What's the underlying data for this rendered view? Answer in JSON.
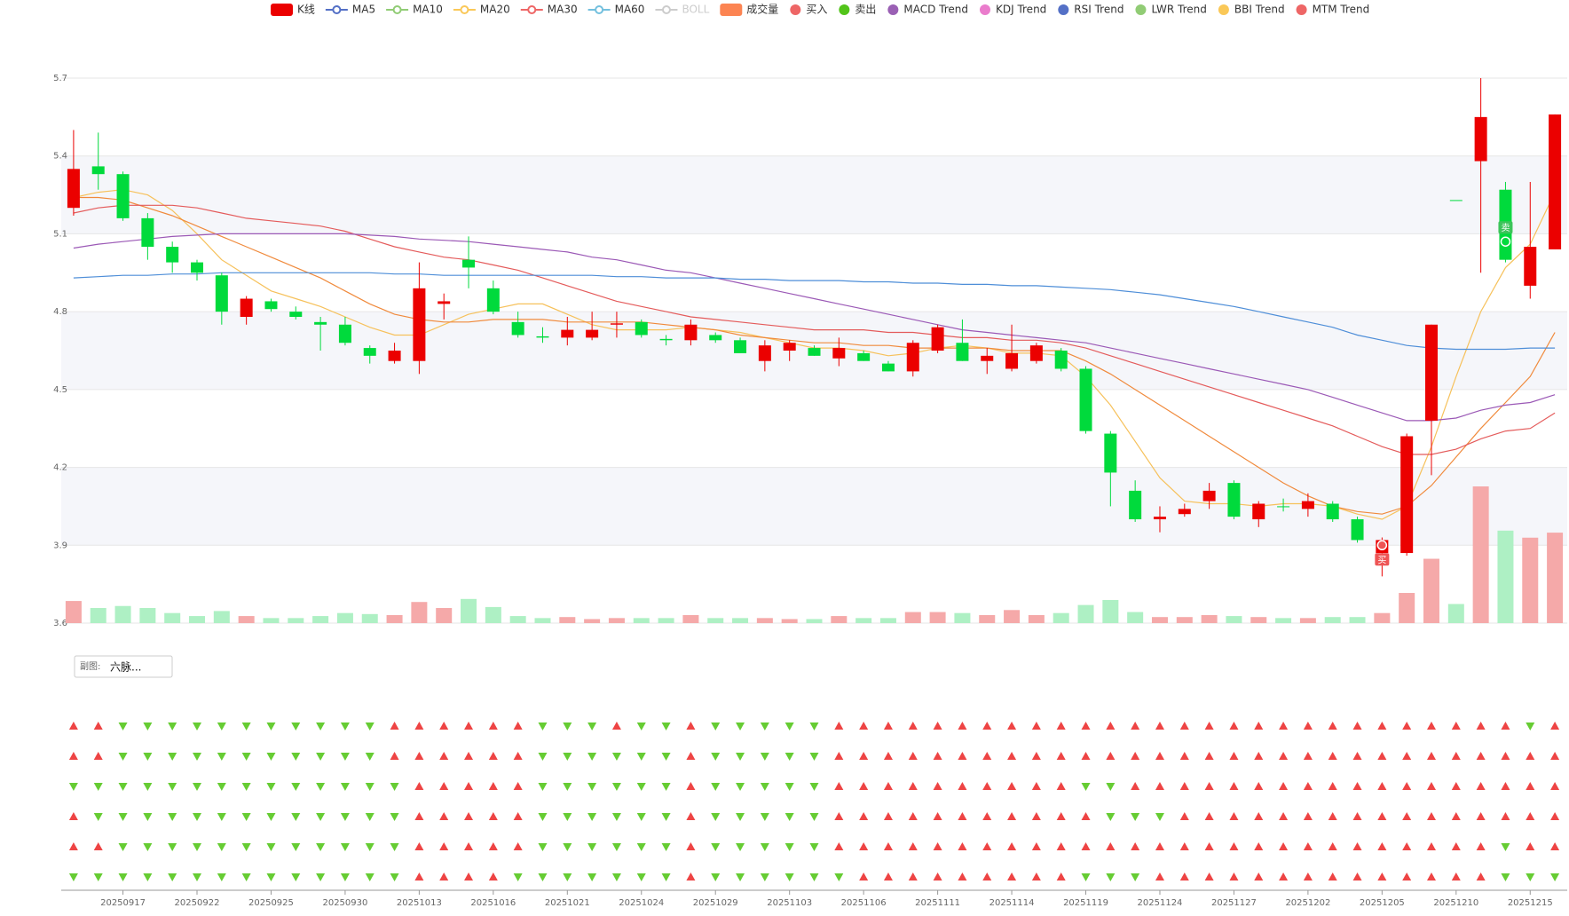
{
  "chart_data": {
    "type": "candlestick",
    "legend": [
      {
        "name": "K线",
        "color": "#eb0000",
        "icon": "rect"
      },
      {
        "name": "MA5",
        "color": "#5470c6",
        "icon": "line"
      },
      {
        "name": "MA10",
        "color": "#91cc75",
        "icon": "line"
      },
      {
        "name": "MA20",
        "color": "#fac858",
        "icon": "line"
      },
      {
        "name": "MA30",
        "color": "#ee6666",
        "icon": "line"
      },
      {
        "name": "MA60",
        "color": "#73c0de",
        "icon": "line"
      },
      {
        "name": "BOLL",
        "color": "#cccccc",
        "icon": "line",
        "inactive": true
      },
      {
        "name": "成交量",
        "color": "#fc8452",
        "icon": "rect"
      },
      {
        "name": "买入",
        "color": "#ee6666",
        "icon": "circle"
      },
      {
        "name": "卖出",
        "color": "#52c41a",
        "icon": "circle"
      },
      {
        "name": "MACD Trend",
        "color": "#9a60b4",
        "icon": "circle"
      },
      {
        "name": "KDJ Trend",
        "color": "#ea7ccc",
        "icon": "circle"
      },
      {
        "name": "RSI Trend",
        "color": "#5470c6",
        "icon": "circle"
      },
      {
        "name": "LWR Trend",
        "color": "#91cc75",
        "icon": "circle"
      },
      {
        "name": "BBI Trend",
        "color": "#fac858",
        "icon": "circle"
      },
      {
        "name": "MTM Trend",
        "color": "#ee6666",
        "icon": "circle"
      }
    ],
    "categories": [
      null,
      null,
      "20250917",
      null,
      null,
      "20250922",
      null,
      null,
      "20250925",
      null,
      null,
      "20250930",
      null,
      null,
      "20251013",
      null,
      null,
      "20251016",
      null,
      null,
      "20251021",
      null,
      null,
      "20251024",
      null,
      null,
      "20251029",
      null,
      null,
      "20251103",
      null,
      null,
      "20251106",
      null,
      null,
      "20251111",
      null,
      null,
      "20251114",
      null,
      null,
      "20251119",
      null,
      null,
      "20251124",
      null,
      null,
      "20251127",
      null,
      null,
      "20251202",
      null,
      null,
      "20251205",
      null,
      null,
      "20251210",
      null,
      null,
      "20251215",
      null
    ],
    "open": [
      5.2,
      5.36,
      5.33,
      5.16,
      5.05,
      4.99,
      4.94,
      4.78,
      4.84,
      4.8,
      4.76,
      4.75,
      4.66,
      4.61,
      4.61,
      4.83,
      5.0,
      4.89,
      4.76,
      4.705,
      4.7,
      4.7,
      4.75,
      4.76,
      4.695,
      4.69,
      4.71,
      4.69,
      4.61,
      4.65,
      4.66,
      4.62,
      4.64,
      4.6,
      4.57,
      4.65,
      4.68,
      4.61,
      4.58,
      4.61,
      4.65,
      4.58,
      4.33,
      4.11,
      4.0,
      4.02,
      4.07,
      4.14,
      4.0,
      4.05,
      4.04,
      4.06,
      4.0,
      3.87,
      3.87,
      4.38,
      5.23,
      5.38,
      5.27,
      4.9,
      5.04
    ],
    "close": [
      5.35,
      5.33,
      5.16,
      5.05,
      4.99,
      4.95,
      4.8,
      4.85,
      4.81,
      4.78,
      4.75,
      4.68,
      4.63,
      4.65,
      4.89,
      4.84,
      4.97,
      4.8,
      4.71,
      4.7,
      4.73,
      4.73,
      4.755,
      4.71,
      4.69,
      4.75,
      4.69,
      4.64,
      4.67,
      4.68,
      4.63,
      4.66,
      4.61,
      4.57,
      4.68,
      4.74,
      4.61,
      4.63,
      4.64,
      4.67,
      4.58,
      4.34,
      4.18,
      4.0,
      4.01,
      4.04,
      4.11,
      4.01,
      4.06,
      4.05,
      4.07,
      4.0,
      3.92,
      3.92,
      4.32,
      4.75,
      5.23,
      5.55,
      5.0,
      5.05,
      5.56
    ],
    "high": [
      5.5,
      5.49,
      5.34,
      5.18,
      5.07,
      5.0,
      4.95,
      4.86,
      4.85,
      4.82,
      4.78,
      4.78,
      4.67,
      4.68,
      4.99,
      4.87,
      5.09,
      4.92,
      4.8,
      4.74,
      4.78,
      4.8,
      4.8,
      4.77,
      4.71,
      4.77,
      4.72,
      4.7,
      4.69,
      4.69,
      4.67,
      4.7,
      4.65,
      4.61,
      4.69,
      4.75,
      4.77,
      4.66,
      4.75,
      4.68,
      4.66,
      4.59,
      4.34,
      4.15,
      4.05,
      4.06,
      4.14,
      4.15,
      4.07,
      4.08,
      4.1,
      4.07,
      4.01,
      3.93,
      4.33,
      4.75,
      5.23,
      5.7,
      5.3,
      5.3,
      5.56
    ],
    "low": [
      5.17,
      5.27,
      5.15,
      5.0,
      4.95,
      4.92,
      4.75,
      4.75,
      4.8,
      4.77,
      4.65,
      4.67,
      4.6,
      4.6,
      4.56,
      4.77,
      4.89,
      4.79,
      4.7,
      4.68,
      4.67,
      4.69,
      4.7,
      4.7,
      4.67,
      4.67,
      4.68,
      4.64,
      4.57,
      4.61,
      4.63,
      4.59,
      4.61,
      4.57,
      4.55,
      4.64,
      4.61,
      4.56,
      4.57,
      4.6,
      4.57,
      4.33,
      4.05,
      3.99,
      3.95,
      4.01,
      4.04,
      4.0,
      3.97,
      4.03,
      4.01,
      3.99,
      3.91,
      3.78,
      3.86,
      4.17,
      5.23,
      4.95,
      4.99,
      4.85,
      5.04
    ],
    "up_color": "#eb0000",
    "down_color": "#00da3c",
    "ylim": [
      3.6,
      5.7
    ],
    "yticks": [
      3.6,
      3.9,
      4.2,
      4.5,
      4.8,
      5.1,
      5.4,
      5.7
    ],
    "grid": true,
    "lines": [
      {
        "color": "#f6c15b",
        "values": [
          5.24,
          5.26,
          5.27,
          5.25,
          5.19,
          5.1,
          5.0,
          4.94,
          4.88,
          4.85,
          4.82,
          4.78,
          4.74,
          4.71,
          4.71,
          4.75,
          4.79,
          4.81,
          4.83,
          4.83,
          4.79,
          4.75,
          4.73,
          4.73,
          4.73,
          4.74,
          4.73,
          4.72,
          4.7,
          4.68,
          4.66,
          4.66,
          4.65,
          4.63,
          4.64,
          4.66,
          4.67,
          4.66,
          4.64,
          4.64,
          4.63,
          4.55,
          4.44,
          4.3,
          4.16,
          4.07,
          4.06,
          4.06,
          4.05,
          4.06,
          4.06,
          4.05,
          4.02,
          4.0,
          4.05,
          4.28,
          4.55,
          4.8,
          4.97,
          5.06,
          5.26
        ]
      },
      {
        "color": "#f08a3c",
        "values": [
          5.24,
          5.24,
          5.23,
          5.2,
          5.17,
          5.13,
          5.09,
          5.05,
          5.01,
          4.97,
          4.93,
          4.88,
          4.83,
          4.79,
          4.77,
          4.76,
          4.76,
          4.77,
          4.77,
          4.77,
          4.76,
          4.76,
          4.76,
          4.76,
          4.75,
          4.74,
          4.73,
          4.71,
          4.7,
          4.69,
          4.68,
          4.68,
          4.67,
          4.67,
          4.66,
          4.66,
          4.66,
          4.66,
          4.65,
          4.65,
          4.65,
          4.61,
          4.56,
          4.5,
          4.44,
          4.38,
          4.32,
          4.26,
          4.2,
          4.14,
          4.09,
          4.05,
          4.03,
          4.02,
          4.05,
          4.13,
          4.24,
          4.35,
          4.45,
          4.55,
          4.72
        ]
      },
      {
        "color": "#e45b5b",
        "values": [
          5.18,
          5.2,
          5.21,
          5.21,
          5.21,
          5.2,
          5.18,
          5.16,
          5.15,
          5.14,
          5.13,
          5.11,
          5.08,
          5.05,
          5.03,
          5.01,
          5.0,
          4.98,
          4.96,
          4.93,
          4.9,
          4.87,
          4.84,
          4.82,
          4.8,
          4.78,
          4.77,
          4.76,
          4.75,
          4.74,
          4.73,
          4.73,
          4.73,
          4.72,
          4.72,
          4.71,
          4.7,
          4.7,
          4.69,
          4.69,
          4.68,
          4.66,
          4.63,
          4.6,
          4.57,
          4.54,
          4.51,
          4.48,
          4.45,
          4.42,
          4.39,
          4.36,
          4.32,
          4.28,
          4.25,
          4.25,
          4.27,
          4.31,
          4.34,
          4.35,
          4.41
        ]
      },
      {
        "color": "#9b59b6",
        "values": [
          5.045,
          5.06,
          5.07,
          5.08,
          5.09,
          5.095,
          5.1,
          5.1,
          5.1,
          5.1,
          5.1,
          5.1,
          5.095,
          5.09,
          5.08,
          5.075,
          5.07,
          5.06,
          5.05,
          5.04,
          5.03,
          5.01,
          5.0,
          4.98,
          4.96,
          4.95,
          4.93,
          4.91,
          4.89,
          4.87,
          4.85,
          4.83,
          4.81,
          4.79,
          4.77,
          4.75,
          4.73,
          4.72,
          4.71,
          4.7,
          4.69,
          4.68,
          4.66,
          4.64,
          4.62,
          4.6,
          4.58,
          4.56,
          4.54,
          4.52,
          4.5,
          4.47,
          4.44,
          4.41,
          4.38,
          4.38,
          4.39,
          4.42,
          4.44,
          4.45,
          4.48
        ]
      },
      {
        "color": "#4e8ed8",
        "values": [
          4.93,
          4.935,
          4.94,
          4.94,
          4.945,
          4.945,
          4.95,
          4.95,
          4.95,
          4.95,
          4.95,
          4.95,
          4.95,
          4.945,
          4.945,
          4.94,
          4.94,
          4.94,
          4.94,
          4.94,
          4.94,
          4.94,
          4.935,
          4.935,
          4.93,
          4.93,
          4.93,
          4.925,
          4.925,
          4.92,
          4.92,
          4.92,
          4.915,
          4.915,
          4.91,
          4.91,
          4.905,
          4.905,
          4.9,
          4.9,
          4.895,
          4.89,
          4.885,
          4.875,
          4.865,
          4.85,
          4.835,
          4.82,
          4.8,
          4.78,
          4.76,
          4.74,
          4.71,
          4.69,
          4.67,
          4.66,
          4.655,
          4.655,
          4.655,
          4.66,
          4.66
        ]
      }
    ],
    "volume": [
      22,
      15,
      17,
      15,
      10,
      7,
      12,
      7,
      5,
      5,
      7,
      10,
      9,
      8,
      21,
      15,
      24,
      16,
      7,
      5,
      6,
      4,
      5,
      5,
      5,
      8,
      5,
      5,
      5,
      4,
      4,
      7,
      5,
      5,
      11,
      11,
      10,
      8,
      13,
      8,
      10,
      18,
      23,
      11,
      6,
      6,
      8,
      7,
      6,
      5,
      5,
      6,
      6,
      10,
      30,
      64,
      19,
      136,
      92,
      85,
      90
    ],
    "volume_up_color": "#f5a9a9",
    "volume_down_color": "#aef0c4",
    "signals": [
      {
        "index": 53,
        "label": "买",
        "price": 3.9,
        "color": "#ee5555",
        "placement": "below"
      },
      {
        "index": 58,
        "label": "卖",
        "price": 5.07,
        "color": "#3cc45a",
        "placement": "above"
      }
    ]
  },
  "sub_panel": {
    "label": "副图:",
    "selected": "六脉...",
    "up_color": "#ee4444",
    "down_color": "#66cc33",
    "rows": [
      [
        1,
        1,
        -1,
        -1,
        -1,
        -1,
        -1,
        -1,
        -1,
        -1,
        -1,
        -1,
        -1,
        1,
        1,
        1,
        1,
        1,
        1,
        -1,
        -1,
        -1,
        1,
        -1,
        -1,
        1,
        -1,
        -1,
        -1,
        -1,
        -1,
        1,
        1,
        1,
        1,
        1,
        1,
        1,
        1,
        1,
        1,
        1,
        1,
        1,
        1,
        1,
        1,
        1,
        1,
        1,
        1,
        1,
        1,
        1,
        1,
        1,
        1,
        1,
        1,
        -1,
        1
      ],
      [
        1,
        1,
        -1,
        -1,
        -1,
        -1,
        -1,
        -1,
        -1,
        -1,
        -1,
        -1,
        -1,
        1,
        1,
        1,
        1,
        1,
        1,
        -1,
        -1,
        -1,
        -1,
        -1,
        -1,
        1,
        -1,
        -1,
        -1,
        -1,
        -1,
        1,
        1,
        1,
        1,
        1,
        1,
        1,
        1,
        1,
        1,
        1,
        1,
        1,
        1,
        1,
        1,
        1,
        1,
        1,
        1,
        1,
        1,
        1,
        1,
        1,
        1,
        1,
        1,
        1,
        1
      ],
      [
        -1,
        -1,
        -1,
        -1,
        -1,
        -1,
        -1,
        -1,
        -1,
        -1,
        -1,
        -1,
        -1,
        -1,
        1,
        1,
        1,
        1,
        1,
        -1,
        -1,
        -1,
        -1,
        -1,
        -1,
        1,
        -1,
        -1,
        -1,
        -1,
        -1,
        1,
        1,
        1,
        1,
        1,
        1,
        1,
        1,
        1,
        1,
        -1,
        -1,
        1,
        1,
        1,
        1,
        1,
        1,
        1,
        1,
        1,
        1,
        1,
        1,
        1,
        1,
        1,
        1,
        1,
        1
      ],
      [
        1,
        -1,
        -1,
        -1,
        -1,
        -1,
        -1,
        -1,
        -1,
        -1,
        -1,
        -1,
        -1,
        -1,
        1,
        1,
        1,
        1,
        1,
        -1,
        -1,
        -1,
        -1,
        -1,
        -1,
        1,
        -1,
        -1,
        -1,
        -1,
        -1,
        1,
        1,
        1,
        1,
        1,
        1,
        1,
        1,
        1,
        1,
        1,
        -1,
        -1,
        -1,
        1,
        1,
        1,
        1,
        1,
        1,
        1,
        1,
        1,
        1,
        1,
        1,
        1,
        1,
        1,
        1
      ],
      [
        1,
        1,
        -1,
        -1,
        -1,
        -1,
        -1,
        -1,
        -1,
        -1,
        -1,
        -1,
        -1,
        -1,
        1,
        1,
        1,
        1,
        1,
        -1,
        -1,
        -1,
        -1,
        -1,
        -1,
        1,
        -1,
        -1,
        -1,
        -1,
        -1,
        1,
        1,
        1,
        1,
        1,
        1,
        1,
        1,
        1,
        1,
        1,
        1,
        1,
        1,
        1,
        1,
        1,
        1,
        1,
        1,
        1,
        1,
        1,
        1,
        1,
        1,
        1,
        -1,
        1,
        1
      ],
      [
        -1,
        -1,
        -1,
        -1,
        -1,
        -1,
        -1,
        -1,
        -1,
        -1,
        -1,
        -1,
        -1,
        -1,
        1,
        1,
        1,
        1,
        -1,
        -1,
        -1,
        -1,
        -1,
        -1,
        -1,
        1,
        -1,
        -1,
        -1,
        -1,
        -1,
        -1,
        1,
        1,
        1,
        1,
        1,
        1,
        1,
        1,
        1,
        -1,
        -1,
        -1,
        1,
        1,
        1,
        1,
        1,
        1,
        1,
        1,
        1,
        1,
        1,
        1,
        1,
        1,
        -1,
        -1,
        -1
      ]
    ]
  }
}
